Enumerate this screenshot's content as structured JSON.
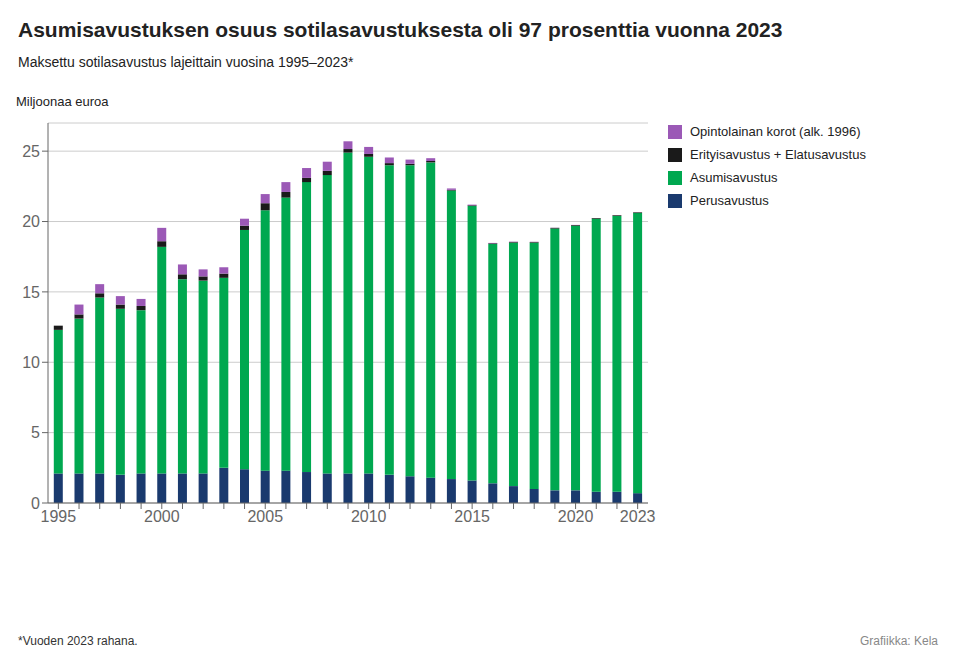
{
  "chart_data": {
    "type": "bar",
    "title": "Asumisavustuksen osuus sotilasavustuksesta oli 97 prosenttia vuonna 2023",
    "subtitle": "Maksettu sotilasavustus lajeittain vuosina 1995–2023*",
    "ylabel": "Miljoonaa euroa",
    "annotations": [
      "*Vuoden 2023 rahana.",
      "Grafiikka: Kela"
    ],
    "categories": [
      "1995",
      null,
      null,
      null,
      null,
      "2000",
      null,
      null,
      null,
      null,
      "2005",
      null,
      null,
      null,
      null,
      "2010",
      null,
      null,
      null,
      null,
      "2015",
      null,
      null,
      null,
      null,
      "2020",
      null,
      null,
      "2023"
    ],
    "series": [
      {
        "name": "Perusavustus",
        "color": "#1a3a6e",
        "values": [
          2.1,
          2.1,
          2.1,
          2.0,
          2.1,
          2.1,
          2.1,
          2.1,
          2.5,
          2.4,
          2.3,
          2.3,
          2.2,
          2.1,
          2.1,
          2.1,
          2.0,
          1.9,
          1.8,
          1.7,
          1.6,
          1.4,
          1.2,
          1.0,
          0.9,
          0.9,
          0.8,
          0.8,
          0.7
        ]
      },
      {
        "name": "Asumisavustus",
        "color": "#00a850",
        "values": [
          10.2,
          11.0,
          12.5,
          11.8,
          11.6,
          16.1,
          13.8,
          13.7,
          13.5,
          17.0,
          18.5,
          19.4,
          20.6,
          21.2,
          22.8,
          22.5,
          22.0,
          22.1,
          22.4,
          20.5,
          19.5,
          17.0,
          17.3,
          17.5,
          18.6,
          18.8,
          19.4,
          19.6,
          19.9
        ]
      },
      {
        "name": "Erityisavustus + Elatusavustus",
        "color": "#1a1a1a",
        "values": [
          0.3,
          0.3,
          0.3,
          0.3,
          0.3,
          0.4,
          0.35,
          0.3,
          0.3,
          0.3,
          0.5,
          0.4,
          0.3,
          0.3,
          0.25,
          0.2,
          0.15,
          0.1,
          0.1,
          0.05,
          0.05,
          0.05,
          0.05,
          0.05,
          0.05,
          0.05,
          0.05,
          0.05,
          0.05
        ]
      },
      {
        "name": "Opintolainan korot (alk. 1996)",
        "color": "#9b59b6",
        "values": [
          0.0,
          0.7,
          0.65,
          0.6,
          0.5,
          0.95,
          0.7,
          0.5,
          0.45,
          0.5,
          0.65,
          0.7,
          0.7,
          0.65,
          0.55,
          0.5,
          0.4,
          0.3,
          0.2,
          0.1,
          0.05,
          0.03,
          0.02,
          0.01,
          0.01,
          0.01,
          0.0,
          0.0,
          0.0
        ]
      }
    ],
    "stacked": true,
    "ylim": [
      0,
      27
    ],
    "yticks": [
      0,
      5,
      10,
      15,
      20,
      25
    ],
    "grid": true,
    "legend": "right"
  }
}
